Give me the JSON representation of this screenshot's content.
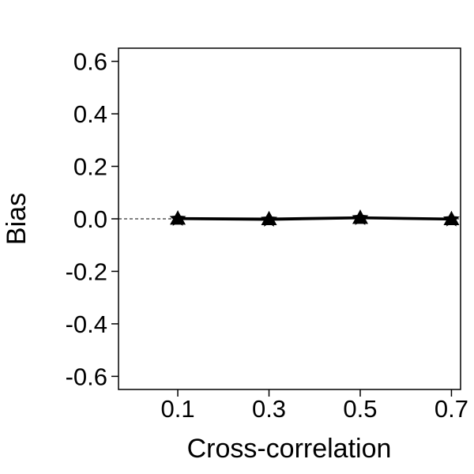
{
  "chart_data": {
    "type": "line",
    "xlabel": "Cross-correlation",
    "ylabel": "Bias",
    "x": [
      0.1,
      0.3,
      0.5,
      0.7
    ],
    "x_tick_labels": [
      "0.1",
      "0.3",
      "0.5",
      "0.7"
    ],
    "y_tick_values": [
      0.6,
      0.4,
      0.2,
      0.0,
      -0.2,
      -0.4,
      -0.6
    ],
    "y_tick_labels": [
      "0.6",
      "0.4",
      "0.2",
      "0.0",
      "-0.2",
      "-0.4",
      "-0.6"
    ],
    "xlim": [
      -0.03,
      0.72
    ],
    "ylim": [
      -0.65,
      0.65
    ],
    "reference_line": {
      "y": 0.0,
      "style": "dashed"
    },
    "series": [
      {
        "values": [
          0.0,
          -0.003,
          0.003,
          -0.002
        ],
        "marker": "star",
        "color": "#000000"
      },
      {
        "values": [
          0.002,
          0.0,
          0.005,
          0.0
        ],
        "marker": "triangle",
        "color": "#000000"
      }
    ],
    "grid": false,
    "legend": "none"
  }
}
